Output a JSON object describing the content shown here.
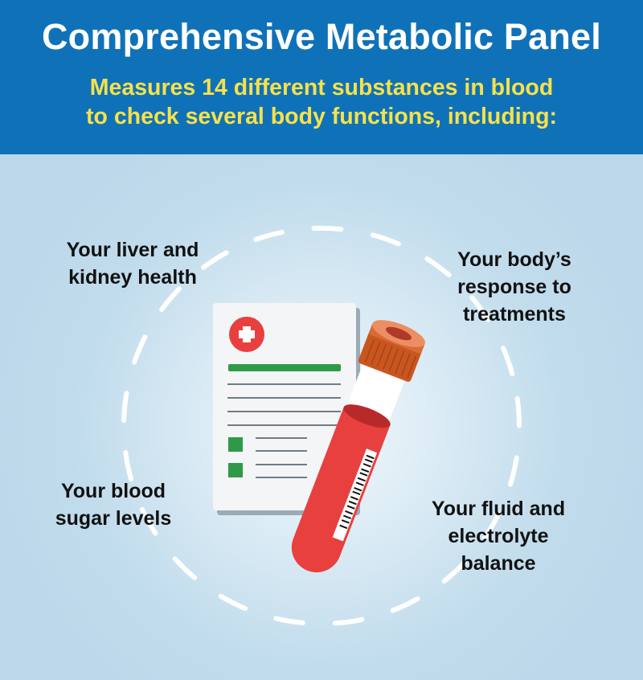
{
  "header": {
    "title": "Comprehensive Metabolic Panel",
    "subtitle_line1": "Measures 14 different substances in blood",
    "subtitle_line2": "to check several body functions, including:"
  },
  "functions": [
    {
      "text": "Your liver and\nkidney health"
    },
    {
      "text": "Your body’s\nresponse to\ntreatments"
    },
    {
      "text": "Your blood\nsugar levels"
    },
    {
      "text": "Your fluid and\nelectrolyte\nbalance"
    }
  ],
  "illustration": {
    "icons": [
      "medical-report-icon",
      "blood-test-tube-icon",
      "red-cross-icon",
      "barcode-icon"
    ]
  },
  "colors": {
    "header_bg": "#0f72b9",
    "title": "#ffffff",
    "subtitle": "#f7e14a",
    "background": "#bcd8ea",
    "blood_red": "#e8403f",
    "cap_orange": "#d4622a",
    "check_green": "#2e9a48"
  }
}
